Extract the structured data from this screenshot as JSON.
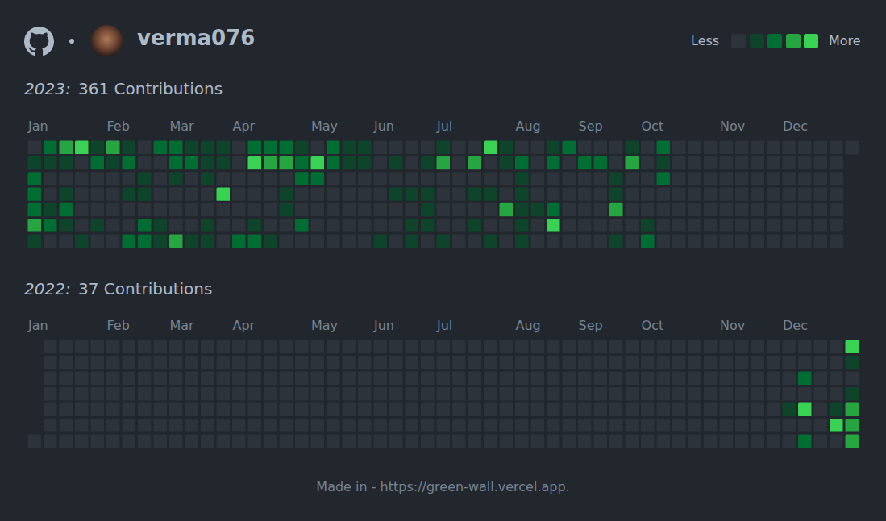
{
  "header": {
    "username": "verma076"
  },
  "scale_key": {
    "low": "Less",
    "high": "More",
    "levels": [
      0,
      1,
      2,
      3,
      4
    ],
    "colors": [
      "#2d333b",
      "#0e4429",
      "#006d32",
      "#26a641",
      "#39d353"
    ]
  },
  "chart_data": [
    {
      "type": "heatmap",
      "title": "2023:",
      "subtitle": "361 Contributions",
      "tick_labels": "x",
      "categories": [
        "Jan",
        null,
        null,
        null,
        null,
        "Feb",
        null,
        null,
        null,
        "Mar",
        null,
        null,
        null,
        "Apr",
        null,
        null,
        null,
        null,
        "May",
        null,
        null,
        null,
        "Jun",
        null,
        null,
        null,
        "Jul",
        null,
        null,
        null,
        null,
        "Aug",
        null,
        null,
        null,
        "Sep",
        null,
        null,
        null,
        "Oct",
        null,
        null,
        null,
        null,
        "Nov",
        null,
        null,
        null,
        "Dec",
        null,
        null,
        null,
        null
      ],
      "cells": [
        [
          0,
          2,
          3,
          4,
          1,
          3,
          1,
          0,
          2,
          2,
          1,
          1,
          1,
          0,
          2,
          2,
          2,
          1,
          0,
          2,
          1,
          1,
          0,
          0,
          0,
          0,
          1,
          0,
          0,
          4,
          1,
          0,
          0,
          1,
          2,
          0,
          0,
          0,
          1,
          0,
          2,
          0,
          0,
          0,
          0,
          0,
          0,
          0,
          0,
          0,
          0,
          0,
          0
        ],
        [
          1,
          1,
          1,
          0,
          2,
          1,
          2,
          0,
          0,
          2,
          2,
          1,
          1,
          0,
          4,
          3,
          3,
          2,
          4,
          2,
          1,
          1,
          0,
          1,
          0,
          1,
          3,
          0,
          3,
          0,
          1,
          2,
          0,
          2,
          0,
          2,
          2,
          0,
          3,
          0,
          1,
          0,
          0,
          0,
          0,
          0,
          0,
          0,
          0,
          0,
          0,
          0,
          null
        ],
        [
          2,
          0,
          0,
          0,
          0,
          0,
          0,
          1,
          0,
          1,
          0,
          1,
          0,
          0,
          0,
          0,
          0,
          2,
          2,
          0,
          0,
          0,
          0,
          0,
          0,
          0,
          0,
          0,
          0,
          0,
          0,
          1,
          0,
          0,
          0,
          0,
          0,
          1,
          0,
          0,
          2,
          0,
          0,
          0,
          0,
          0,
          0,
          0,
          0,
          0,
          0,
          0,
          null
        ],
        [
          2,
          0,
          1,
          0,
          0,
          0,
          1,
          1,
          0,
          0,
          0,
          0,
          4,
          0,
          0,
          0,
          1,
          0,
          0,
          0,
          0,
          0,
          0,
          1,
          1,
          1,
          0,
          0,
          1,
          1,
          0,
          1,
          0,
          0,
          0,
          0,
          0,
          1,
          0,
          0,
          0,
          0,
          0,
          0,
          0,
          0,
          0,
          0,
          0,
          0,
          0,
          0,
          null
        ],
        [
          2,
          1,
          2,
          0,
          0,
          0,
          0,
          0,
          0,
          0,
          0,
          0,
          0,
          0,
          0,
          0,
          1,
          0,
          0,
          0,
          0,
          0,
          0,
          0,
          0,
          1,
          0,
          0,
          0,
          0,
          3,
          1,
          1,
          2,
          0,
          0,
          0,
          3,
          0,
          0,
          0,
          0,
          0,
          0,
          0,
          0,
          0,
          0,
          0,
          0,
          0,
          0,
          null
        ],
        [
          3,
          2,
          1,
          0,
          1,
          0,
          0,
          2,
          1,
          0,
          0,
          1,
          0,
          0,
          1,
          0,
          0,
          2,
          0,
          0,
          0,
          0,
          0,
          0,
          1,
          1,
          0,
          0,
          1,
          0,
          0,
          1,
          0,
          4,
          0,
          0,
          0,
          0,
          0,
          1,
          0,
          0,
          0,
          0,
          0,
          0,
          0,
          0,
          0,
          0,
          0,
          0,
          null
        ],
        [
          1,
          0,
          0,
          1,
          0,
          0,
          2,
          2,
          1,
          3,
          1,
          1,
          0,
          2,
          2,
          1,
          0,
          0,
          0,
          0,
          0,
          0,
          1,
          0,
          1,
          0,
          1,
          0,
          0,
          1,
          0,
          1,
          0,
          0,
          0,
          0,
          0,
          1,
          0,
          2,
          0,
          0,
          0,
          0,
          0,
          0,
          0,
          0,
          0,
          0,
          0,
          0,
          null
        ]
      ]
    },
    {
      "type": "heatmap",
      "title": "2022:",
      "subtitle": "37 Contributions",
      "tick_labels": "x",
      "categories": [
        "Jan",
        null,
        null,
        null,
        null,
        "Feb",
        null,
        null,
        null,
        "Mar",
        null,
        null,
        null,
        "Apr",
        null,
        null,
        null,
        null,
        "May",
        null,
        null,
        null,
        "Jun",
        null,
        null,
        null,
        "Jul",
        null,
        null,
        null,
        null,
        "Aug",
        null,
        null,
        null,
        "Sep",
        null,
        null,
        null,
        "Oct",
        null,
        null,
        null,
        null,
        "Nov",
        null,
        null,
        null,
        "Dec",
        null,
        null,
        null,
        null
      ],
      "cells": [
        [
          null,
          0,
          0,
          0,
          0,
          0,
          0,
          0,
          0,
          0,
          0,
          0,
          0,
          0,
          0,
          0,
          0,
          0,
          0,
          0,
          0,
          0,
          0,
          0,
          0,
          0,
          0,
          0,
          0,
          0,
          0,
          0,
          0,
          0,
          0,
          0,
          0,
          0,
          0,
          0,
          0,
          0,
          0,
          0,
          0,
          0,
          0,
          0,
          0,
          0,
          0,
          0,
          4
        ],
        [
          null,
          0,
          0,
          0,
          0,
          0,
          0,
          0,
          0,
          0,
          0,
          0,
          0,
          0,
          0,
          0,
          0,
          0,
          0,
          0,
          0,
          0,
          0,
          0,
          0,
          0,
          0,
          0,
          0,
          0,
          0,
          0,
          0,
          0,
          0,
          0,
          0,
          0,
          0,
          0,
          0,
          0,
          0,
          0,
          0,
          0,
          0,
          0,
          0,
          0,
          0,
          0,
          1
        ],
        [
          null,
          0,
          0,
          0,
          0,
          0,
          0,
          0,
          0,
          0,
          0,
          0,
          0,
          0,
          0,
          0,
          0,
          0,
          0,
          0,
          0,
          0,
          0,
          0,
          0,
          0,
          0,
          0,
          0,
          0,
          0,
          0,
          0,
          0,
          0,
          0,
          0,
          0,
          0,
          0,
          0,
          0,
          0,
          0,
          0,
          0,
          0,
          0,
          0,
          2,
          0,
          0,
          0
        ],
        [
          null,
          0,
          0,
          0,
          0,
          0,
          0,
          0,
          0,
          0,
          0,
          0,
          0,
          0,
          0,
          0,
          0,
          0,
          0,
          0,
          0,
          0,
          0,
          0,
          0,
          0,
          0,
          0,
          0,
          0,
          0,
          0,
          0,
          0,
          0,
          0,
          0,
          0,
          0,
          0,
          0,
          0,
          0,
          0,
          0,
          0,
          0,
          0,
          0,
          0,
          0,
          0,
          1
        ],
        [
          null,
          0,
          0,
          0,
          0,
          0,
          0,
          0,
          0,
          0,
          0,
          0,
          0,
          0,
          0,
          0,
          0,
          0,
          0,
          0,
          0,
          0,
          0,
          0,
          0,
          0,
          0,
          0,
          0,
          0,
          0,
          0,
          0,
          0,
          0,
          0,
          0,
          0,
          0,
          0,
          0,
          0,
          0,
          0,
          0,
          0,
          0,
          0,
          1,
          4,
          0,
          1,
          3
        ],
        [
          null,
          0,
          0,
          0,
          0,
          0,
          0,
          0,
          0,
          0,
          0,
          0,
          0,
          0,
          0,
          0,
          0,
          0,
          0,
          0,
          0,
          0,
          0,
          0,
          0,
          0,
          0,
          0,
          0,
          0,
          0,
          0,
          0,
          0,
          0,
          0,
          0,
          0,
          0,
          0,
          0,
          0,
          0,
          0,
          0,
          0,
          0,
          0,
          0,
          0,
          0,
          4,
          3
        ],
        [
          0,
          0,
          0,
          0,
          0,
          0,
          0,
          0,
          0,
          0,
          0,
          0,
          0,
          0,
          0,
          0,
          0,
          0,
          0,
          0,
          0,
          0,
          0,
          0,
          0,
          0,
          0,
          0,
          0,
          0,
          0,
          0,
          0,
          0,
          0,
          0,
          0,
          0,
          0,
          0,
          0,
          0,
          0,
          0,
          0,
          0,
          0,
          0,
          0,
          2,
          0,
          0,
          3
        ]
      ]
    }
  ],
  "footer": "Made in - https://green-wall.vercel.app."
}
